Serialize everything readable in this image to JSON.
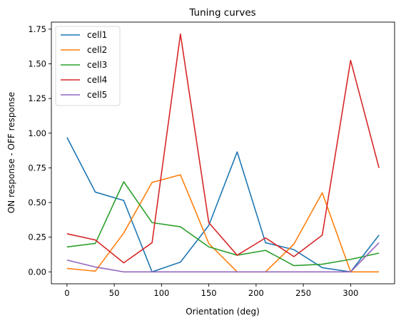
{
  "chart_data": {
    "type": "line",
    "title": "Tuning curves",
    "xlabel": "Orientation (deg)",
    "ylabel": "ON response -  OFF response",
    "xlim": [
      -16.5,
      346.5
    ],
    "ylim": [
      -0.086,
      1.801
    ],
    "xticks": [
      0,
      50,
      100,
      150,
      200,
      250,
      300
    ],
    "xtick_labels": [
      "0",
      "50",
      "100",
      "150",
      "200",
      "250",
      "300"
    ],
    "yticks": [
      0,
      0.25,
      0.5,
      0.75,
      1.0,
      1.25,
      1.5,
      1.75
    ],
    "ytick_labels": [
      "0.00",
      "0.25",
      "0.50",
      "0.75",
      "1.00",
      "1.25",
      "1.50",
      "1.75"
    ],
    "grid": false,
    "legend_position": "top-left",
    "x": [
      0,
      30,
      60,
      90,
      120,
      150,
      180,
      210,
      240,
      270,
      300,
      330
    ],
    "series": [
      {
        "name": "cell1",
        "color": "#1f77b4",
        "values": [
          0.97,
          0.575,
          0.515,
          0.0,
          0.07,
          0.335,
          0.865,
          0.21,
          0.16,
          0.03,
          0.0,
          0.265
        ]
      },
      {
        "name": "cell2",
        "color": "#ff7f0e",
        "values": [
          0.025,
          0.005,
          0.28,
          0.645,
          0.7,
          0.205,
          0.0,
          0.0,
          0.2,
          0.57,
          0.0,
          0.0
        ]
      },
      {
        "name": "cell3",
        "color": "#2ca02c",
        "values": [
          0.18,
          0.205,
          0.65,
          0.355,
          0.325,
          0.18,
          0.12,
          0.155,
          0.045,
          0.055,
          0.09,
          0.135
        ]
      },
      {
        "name": "cell4",
        "color": "#d62728",
        "values": [
          0.275,
          0.23,
          0.065,
          0.21,
          1.715,
          0.355,
          0.12,
          0.245,
          0.11,
          0.265,
          1.525,
          0.75
        ]
      },
      {
        "name": "cell5",
        "color": "#9467bd",
        "values": [
          0.085,
          0.035,
          0.0,
          0.0,
          0.0,
          0.0,
          0.0,
          0.0,
          0.0,
          0.0,
          0.0,
          0.21
        ]
      }
    ]
  }
}
